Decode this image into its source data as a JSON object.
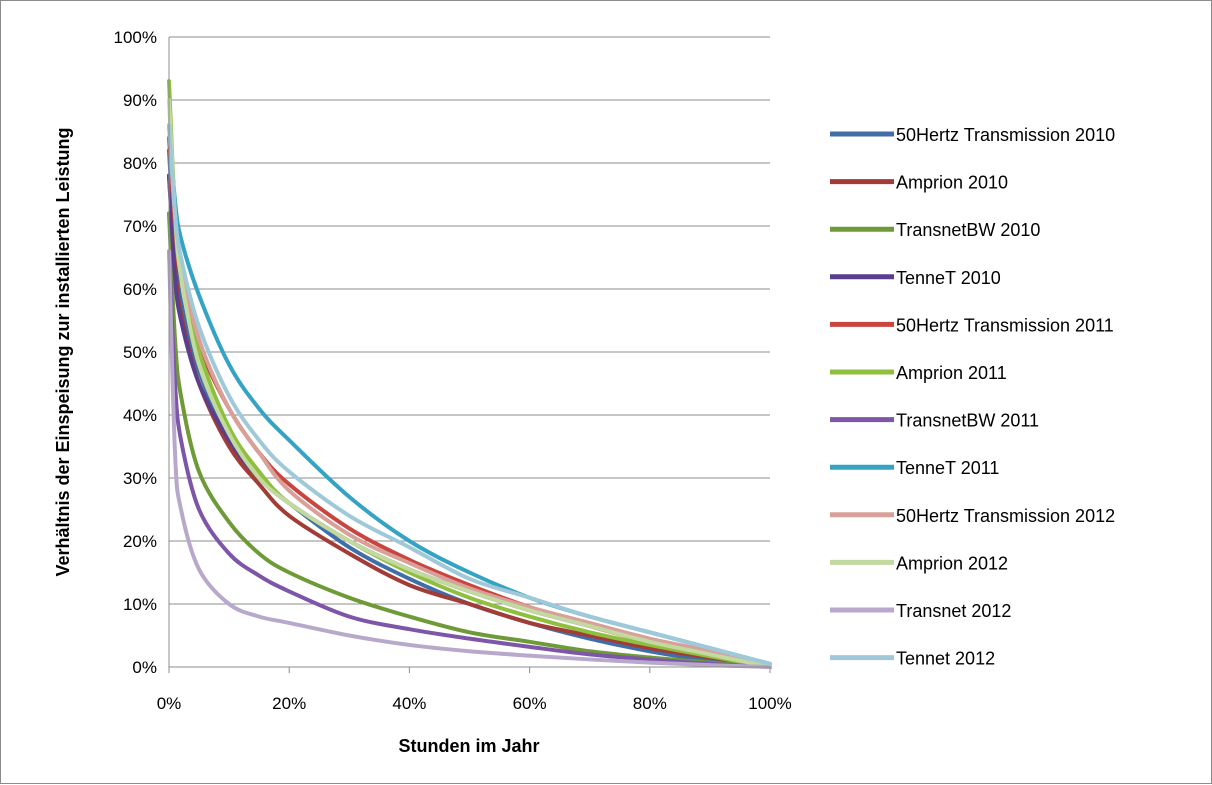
{
  "chart_data": {
    "type": "line",
    "title": "",
    "xlabel": "Stunden im Jahr",
    "ylabel": "Verhältnis der Einspeisung zur installierten Leistung",
    "xlim": [
      0,
      1
    ],
    "ylim": [
      0,
      1
    ],
    "x_ticks": [
      "0%",
      "20%",
      "40%",
      "60%",
      "80%",
      "100%"
    ],
    "y_ticks": [
      "0%",
      "10%",
      "20%",
      "30%",
      "40%",
      "50%",
      "60%",
      "70%",
      "80%",
      "90%",
      "100%"
    ],
    "grid": "horizontal",
    "legend_position": "right",
    "x": [
      0,
      0.01,
      0.02,
      0.05,
      0.1,
      0.15,
      0.2,
      0.3,
      0.4,
      0.5,
      0.6,
      0.7,
      0.8,
      0.9,
      1.0
    ],
    "series": [
      {
        "name": "50Hertz Transmission 2010",
        "color": "#3f6ea8",
        "values": [
          0.82,
          0.66,
          0.58,
          0.47,
          0.36,
          0.3,
          0.26,
          0.19,
          0.14,
          0.1,
          0.07,
          0.045,
          0.025,
          0.01,
          0.0
        ]
      },
      {
        "name": "Amprion 2010",
        "color": "#a33b36",
        "values": [
          0.78,
          0.64,
          0.56,
          0.45,
          0.35,
          0.29,
          0.24,
          0.18,
          0.13,
          0.1,
          0.07,
          0.05,
          0.03,
          0.015,
          0.0
        ]
      },
      {
        "name": "TransnetBW 2010",
        "color": "#6e9a38",
        "values": [
          0.72,
          0.52,
          0.43,
          0.31,
          0.23,
          0.18,
          0.15,
          0.11,
          0.08,
          0.055,
          0.04,
          0.025,
          0.015,
          0.007,
          0.0
        ]
      },
      {
        "name": "TenneT 2010",
        "color": "#5b3f8c",
        "values": [
          0.78,
          0.62,
          0.55,
          0.45,
          0.36,
          0.3,
          0.26,
          0.2,
          0.155,
          0.12,
          0.09,
          0.065,
          0.04,
          0.02,
          0.0
        ]
      },
      {
        "name": "50Hertz Transmission 2011",
        "color": "#c9453f",
        "values": [
          0.84,
          0.7,
          0.62,
          0.51,
          0.41,
          0.34,
          0.29,
          0.22,
          0.17,
          0.13,
          0.095,
          0.065,
          0.04,
          0.02,
          0.0
        ]
      },
      {
        "name": "Amprion 2011",
        "color": "#8ebf3f",
        "values": [
          0.93,
          0.72,
          0.62,
          0.5,
          0.38,
          0.31,
          0.26,
          0.2,
          0.15,
          0.11,
          0.08,
          0.055,
          0.035,
          0.017,
          0.0
        ]
      },
      {
        "name": "TransnetBW 2011",
        "color": "#7d56a8",
        "values": [
          0.66,
          0.45,
          0.36,
          0.25,
          0.18,
          0.145,
          0.12,
          0.08,
          0.06,
          0.045,
          0.032,
          0.02,
          0.012,
          0.005,
          0.0
        ]
      },
      {
        "name": "TenneT 2011",
        "color": "#35a3c4",
        "values": [
          0.86,
          0.74,
          0.68,
          0.59,
          0.48,
          0.41,
          0.36,
          0.27,
          0.2,
          0.15,
          0.11,
          0.08,
          0.055,
          0.03,
          0.005
        ]
      },
      {
        "name": "50Hertz Transmission 2012",
        "color": "#d9a09a",
        "values": [
          0.86,
          0.72,
          0.64,
          0.52,
          0.41,
          0.34,
          0.28,
          0.21,
          0.165,
          0.125,
          0.095,
          0.07,
          0.045,
          0.025,
          0.0
        ]
      },
      {
        "name": "Amprion 2012",
        "color": "#c2d9a0",
        "values": [
          0.9,
          0.72,
          0.62,
          0.48,
          0.37,
          0.3,
          0.26,
          0.2,
          0.155,
          0.12,
          0.09,
          0.065,
          0.04,
          0.02,
          0.0
        ]
      },
      {
        "name": "Transnet 2012",
        "color": "#b8a9cc",
        "values": [
          0.66,
          0.34,
          0.25,
          0.155,
          0.1,
          0.08,
          0.07,
          0.05,
          0.035,
          0.025,
          0.018,
          0.012,
          0.007,
          0.003,
          0.0
        ]
      },
      {
        "name": "Tennet 2012",
        "color": "#9fc9d9",
        "values": [
          0.86,
          0.72,
          0.65,
          0.54,
          0.43,
          0.36,
          0.31,
          0.24,
          0.19,
          0.14,
          0.11,
          0.08,
          0.055,
          0.03,
          0.005
        ]
      }
    ]
  }
}
